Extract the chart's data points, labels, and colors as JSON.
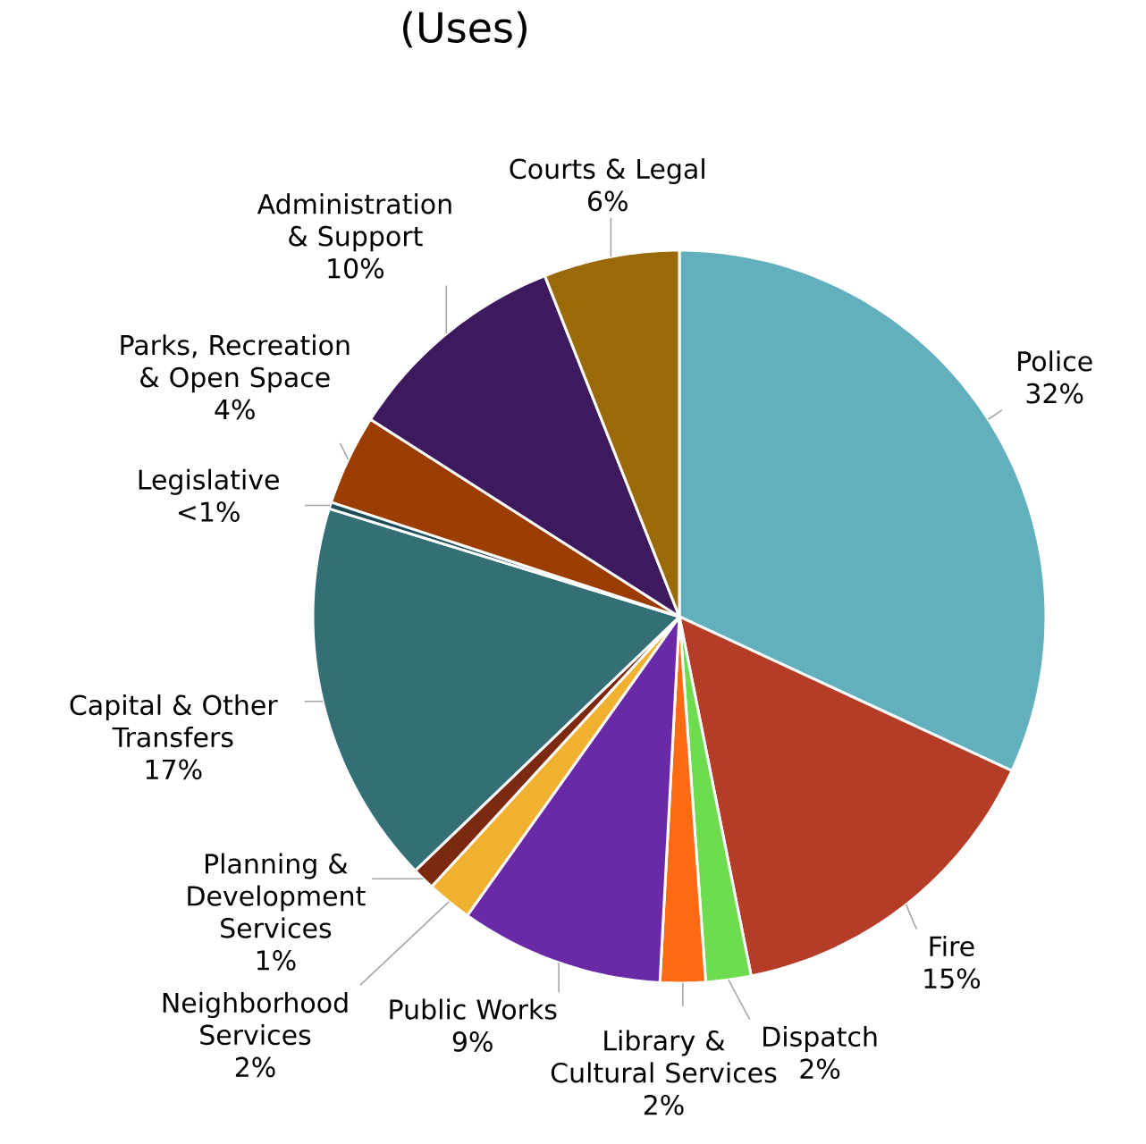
{
  "chart_data": {
    "type": "pie",
    "title": "(Uses)",
    "categories": [
      "Police",
      "Fire",
      "Dispatch",
      "Library & Cultural Services",
      "Public Works",
      "Neighborhood Services",
      "Planning & Development Services",
      "Capital & Other Transfers",
      "Legislative",
      "Parks, Recreation & Open Space",
      "Administration & Support",
      "Courts & Legal"
    ],
    "values": [
      32,
      15,
      2,
      2,
      9,
      2,
      1,
      17,
      0.3,
      4,
      10,
      6
    ],
    "value_labels": [
      "32%",
      "15%",
      "2%",
      "2%",
      "9%",
      "2%",
      "1%",
      "17%",
      "<1%",
      "4%",
      "10%",
      "6%"
    ],
    "colors": [
      "#62afbd",
      "#b53c26",
      "#6ddc4f",
      "#ff6a13",
      "#6a2aa8",
      "#f0b030",
      "#7b2a10",
      "#336f75",
      "#1f4e5a",
      "#9b3d00",
      "#3d1a5e",
      "#9a6a0a"
    ]
  }
}
